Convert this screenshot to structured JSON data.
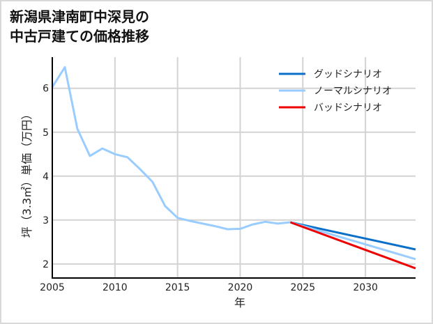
{
  "title": {
    "line1": "新潟県津南町中深見の",
    "line2": "中古戸建ての価格推移"
  },
  "chart_data": {
    "type": "line",
    "title": "新潟県津南町中深見の中古戸建ての価格推移",
    "xlabel": "年",
    "ylabel": "坪（3.3㎡）単価（万円）",
    "xlim": [
      2005,
      2034
    ],
    "ylim": [
      1.68,
      6.71
    ],
    "x_ticks": [
      2005,
      2010,
      2015,
      2020,
      2025,
      2030
    ],
    "y_ticks": [
      2,
      3,
      4,
      5,
      6
    ],
    "grid": true,
    "legend_position": "upper right",
    "series": [
      {
        "name": "ノーマルシナリオ",
        "role": "history",
        "color": "#99ccff",
        "x": [
          2005,
          2006,
          2007,
          2008,
          2009,
          2010,
          2011,
          2012,
          2013,
          2014,
          2015,
          2016,
          2017,
          2018,
          2019,
          2020,
          2021,
          2022,
          2023,
          2024
        ],
        "values": [
          6.03,
          6.48,
          5.08,
          4.46,
          4.63,
          4.5,
          4.43,
          4.16,
          3.87,
          3.32,
          3.05,
          2.98,
          2.92,
          2.86,
          2.79,
          2.8,
          2.9,
          2.96,
          2.92,
          2.95
        ]
      },
      {
        "name": "グッドシナリオ",
        "color": "#0a6fc9",
        "x": [
          2024,
          2034
        ],
        "values": [
          2.95,
          2.33
        ]
      },
      {
        "name": "ノーマルシナリオ",
        "color": "#99ccff",
        "x": [
          2024,
          2034
        ],
        "values": [
          2.95,
          2.11
        ]
      },
      {
        "name": "バッドシナリオ",
        "color": "#ee0000",
        "x": [
          2024,
          2034
        ],
        "values": [
          2.95,
          1.9
        ]
      }
    ],
    "legend": [
      {
        "label": "グッドシナリオ",
        "color": "#0a6fc9"
      },
      {
        "label": "ノーマルシナリオ",
        "color": "#99ccff"
      },
      {
        "label": "バッドシナリオ",
        "color": "#ee0000"
      }
    ]
  }
}
